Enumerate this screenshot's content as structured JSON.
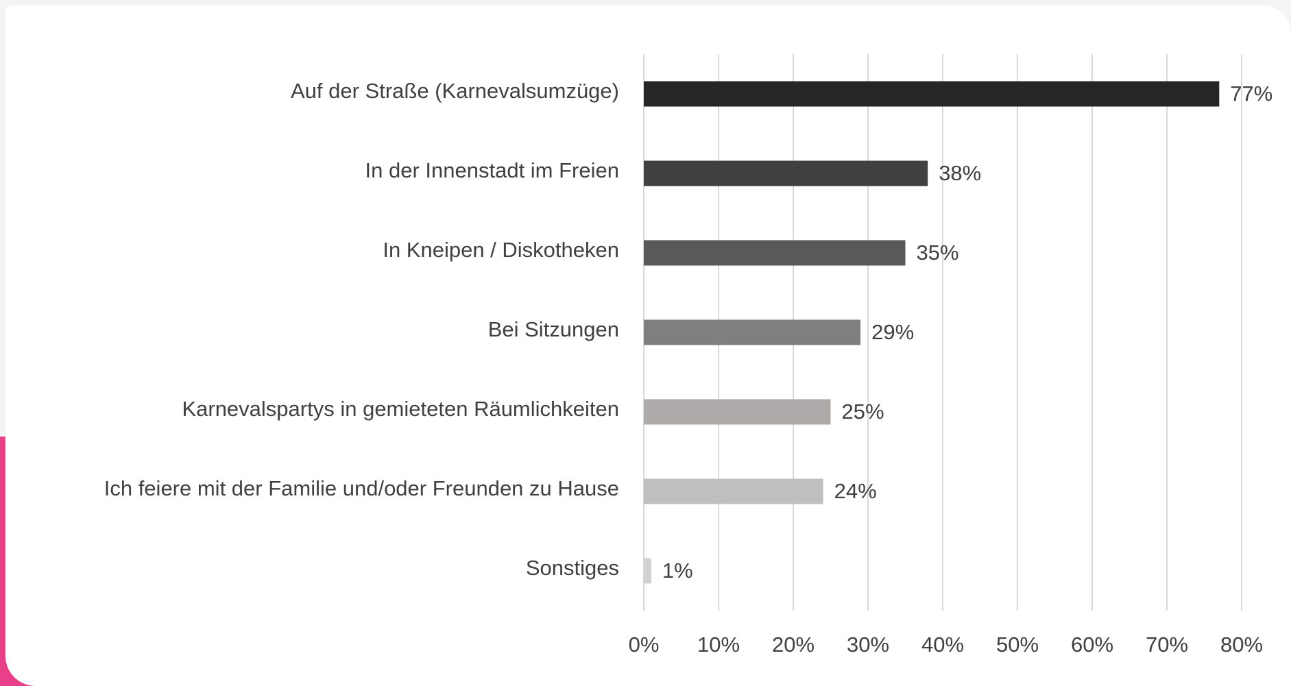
{
  "chart_data": {
    "type": "bar",
    "orientation": "horizontal",
    "categories": [
      "Auf der Straße (Karnevalsumzüge)",
      "In der Innenstadt im Freien",
      "In Kneipen / Diskotheken",
      "Bei Sitzungen",
      "Karnevalspartys in gemieteten Räumlichkeiten",
      "Ich feiere mit der Familie und/oder Freunden zu Hause",
      "Sonstiges"
    ],
    "values": [
      77,
      38,
      35,
      29,
      25,
      24,
      1
    ],
    "value_labels": [
      "77%",
      "38%",
      "35%",
      "29%",
      "25%",
      "24%",
      "1%"
    ],
    "colors": [
      "#262626",
      "#404040",
      "#595959",
      "#7f7f7f",
      "#aeaaaa",
      "#bfbfbf",
      "#d0d0d0"
    ],
    "xlim": [
      0,
      80
    ],
    "xticks": [
      {
        "value": 0,
        "label": "0%"
      },
      {
        "value": 10,
        "label": "10%"
      },
      {
        "value": 20,
        "label": "20%"
      },
      {
        "value": 30,
        "label": "30%"
      },
      {
        "value": 40,
        "label": "40%"
      },
      {
        "value": 50,
        "label": "50%"
      },
      {
        "value": 60,
        "label": "60%"
      },
      {
        "value": 70,
        "label": "70%"
      },
      {
        "value": 80,
        "label": "80%"
      }
    ],
    "grid": true
  }
}
